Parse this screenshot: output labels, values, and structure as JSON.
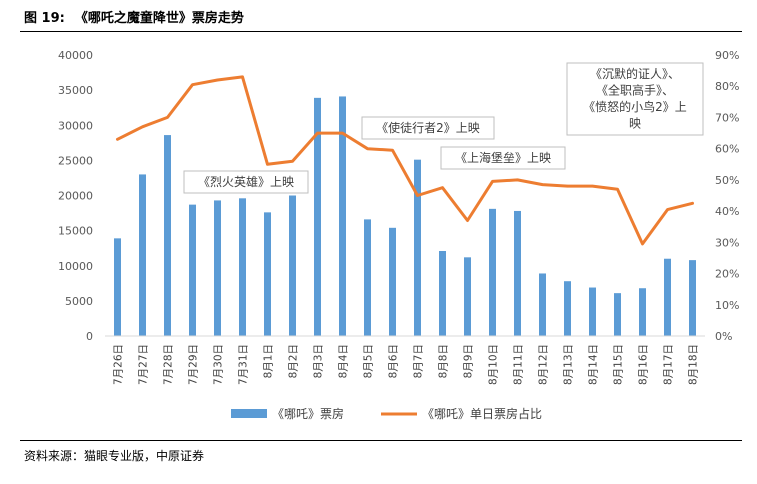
{
  "figure": {
    "label": "图 19:",
    "title": "《哪吒之魔童降世》票房走势",
    "source": "资料来源：猫眼专业版，中原证券"
  },
  "chart_data": {
    "type": "bar+line",
    "categories": [
      "7月26日",
      "7月27日",
      "7月28日",
      "7月29日",
      "7月30日",
      "7月31日",
      "8月1日",
      "8月2日",
      "8月3日",
      "8月4日",
      "8月5日",
      "8月6日",
      "8月7日",
      "8月8日",
      "8月9日",
      "8月10日",
      "8月11日",
      "8月12日",
      "8月13日",
      "8月14日",
      "8月15日",
      "8月16日",
      "8月17日",
      "8月18日"
    ],
    "series": [
      {
        "name": "《哪吒》票房",
        "type": "bar",
        "axis": "left",
        "color": "#5b9bd5",
        "values": [
          13900,
          23000,
          28600,
          18700,
          19300,
          19600,
          17600,
          20000,
          33900,
          34100,
          16600,
          15400,
          25100,
          12100,
          11200,
          18100,
          17800,
          8900,
          7800,
          6900,
          6100,
          6800,
          11000,
          10800
        ]
      },
      {
        "name": "《哪吒》单日票房占比",
        "type": "line",
        "axis": "right",
        "color": "#ed7d31",
        "values": [
          63,
          67,
          70,
          80.5,
          82,
          83,
          55,
          56,
          65,
          65,
          60,
          59.5,
          45,
          47.5,
          37,
          49.5,
          50,
          48.5,
          48,
          48,
          47,
          29.5,
          40.5,
          42.5
        ]
      }
    ],
    "y_left": {
      "min": 0,
      "max": 40000,
      "step": 5000,
      "ticks": [
        "0",
        "5000",
        "10000",
        "15000",
        "20000",
        "25000",
        "30000",
        "35000",
        "40000"
      ]
    },
    "y_right": {
      "min": 0,
      "max": 90,
      "step": 10,
      "ticks": [
        "0%",
        "10%",
        "20%",
        "30%",
        "40%",
        "50%",
        "60%",
        "70%",
        "80%",
        "90%"
      ]
    },
    "annotations": [
      {
        "lines": [
          "《烈火英雄》上映"
        ]
      },
      {
        "lines": [
          "《使徒行者2》上映"
        ]
      },
      {
        "lines": [
          "《上海堡垒》上映"
        ]
      },
      {
        "lines": [
          "《沉默的证人》、",
          "《全职高手》、",
          "《愤怒的小鸟2》上",
          "映"
        ]
      }
    ],
    "legend_position": "bottom",
    "grid": false
  }
}
